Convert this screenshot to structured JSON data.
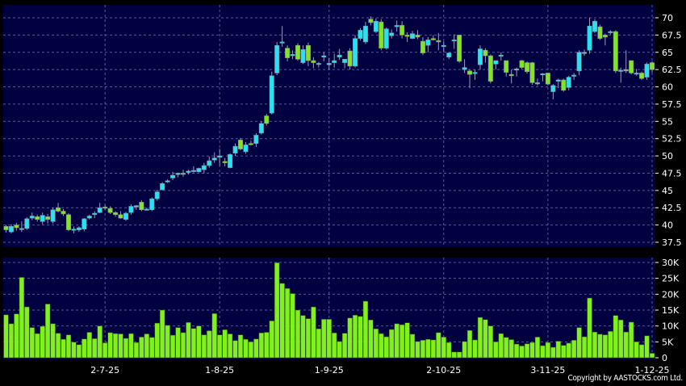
{
  "copyright": "Copyright by AASTOCKS.com Ltd.",
  "colors": {
    "background": "#000000",
    "panel": "#000040",
    "up": "#22e4f2",
    "down": "#80e620",
    "volume": "#80f020",
    "grid": "#5a5a9a",
    "wick": "#9aa0b0"
  },
  "chart_data": [
    {
      "type": "candlestick",
      "price_axis": {
        "ticks": [
          "37.5",
          "40",
          "42.5",
          "45",
          "47.5",
          "50",
          "52.5",
          "55",
          "57.5",
          "60",
          "62.5",
          "65",
          "67.5",
          "70"
        ],
        "ylim": [
          37.5,
          70
        ],
        "position": "right"
      },
      "x_tick_labels": [
        {
          "label": "2-7-25",
          "index": 19
        },
        {
          "label": "1-8-25",
          "index": 41
        },
        {
          "label": "1-9-25",
          "index": 62
        },
        {
          "label": "2-10-25",
          "index": 84
        },
        {
          "label": "3-11-25",
          "index": 104
        },
        {
          "label": "1-12-25",
          "index": 124
        }
      ],
      "grid": true,
      "ohlc": [
        [
          39.8,
          40.0,
          38.9,
          39.3
        ],
        [
          39.0,
          40.1,
          38.8,
          39.8
        ],
        [
          40.0,
          40.3,
          39.2,
          39.6
        ],
        [
          39.5,
          40.5,
          39.0,
          39.5
        ],
        [
          39.5,
          41.1,
          39.3,
          40.9
        ],
        [
          41.0,
          41.8,
          40.7,
          41.3
        ],
        [
          41.2,
          41.5,
          40.5,
          40.8
        ],
        [
          40.5,
          41.8,
          40.1,
          41.4
        ],
        [
          41.2,
          41.6,
          40.2,
          40.8
        ],
        [
          40.5,
          42.5,
          40.2,
          42.2
        ],
        [
          42.5,
          43.2,
          41.8,
          42.0
        ],
        [
          42.0,
          42.3,
          41.3,
          41.6
        ],
        [
          41.5,
          41.7,
          39.1,
          39.3
        ],
        [
          39.3,
          39.8,
          38.8,
          39.4
        ],
        [
          39.3,
          39.8,
          39.0,
          39.6
        ],
        [
          39.4,
          41.0,
          39.1,
          40.9
        ],
        [
          41.0,
          41.5,
          40.8,
          41.3
        ],
        [
          41.5,
          42.0,
          41.0,
          41.7
        ],
        [
          41.8,
          43.2,
          41.7,
          42.5
        ],
        [
          42.6,
          42.9,
          42.2,
          42.5
        ],
        [
          42.4,
          42.7,
          41.6,
          41.8
        ],
        [
          41.8,
          42.0,
          41.2,
          41.5
        ],
        [
          41.5,
          42.0,
          40.9,
          41.0
        ],
        [
          40.8,
          41.9,
          40.6,
          41.7
        ],
        [
          41.8,
          43.0,
          41.5,
          42.7
        ],
        [
          42.6,
          42.9,
          42.2,
          42.8
        ],
        [
          43.3,
          43.6,
          42.0,
          42.2
        ],
        [
          42.3,
          42.5,
          42.2,
          42.3
        ],
        [
          42.2,
          44.0,
          42.0,
          43.8
        ],
        [
          43.8,
          45.1,
          43.5,
          44.8
        ],
        [
          45.1,
          46.2,
          45.0,
          46.0
        ],
        [
          46.3,
          46.6,
          46.1,
          46.4
        ],
        [
          46.8,
          47.7,
          46.5,
          47.2
        ],
        [
          47.3,
          47.6,
          46.9,
          47.5
        ],
        [
          47.5,
          48.0,
          47.0,
          47.4
        ],
        [
          47.6,
          48.0,
          47.3,
          47.8
        ],
        [
          47.8,
          48.5,
          47.6,
          47.9
        ],
        [
          47.7,
          48.3,
          47.6,
          48.2
        ],
        [
          48.0,
          49.0,
          47.5,
          48.6
        ],
        [
          48.6,
          49.9,
          48.3,
          49.3
        ],
        [
          49.4,
          50.5,
          49.0,
          49.7
        ],
        [
          49.8,
          51.0,
          48.6,
          50.0
        ],
        [
          49.2,
          49.7,
          48.5,
          49.0
        ],
        [
          48.3,
          50.4,
          48.2,
          50.2
        ],
        [
          50.4,
          51.8,
          50.0,
          51.4
        ],
        [
          52.3,
          52.6,
          50.8,
          51.0
        ],
        [
          50.6,
          52.0,
          50.3,
          51.6
        ],
        [
          51.8,
          52.2,
          51.5,
          51.7
        ],
        [
          51.8,
          53.3,
          51.3,
          53.0
        ],
        [
          53.3,
          55.0,
          53.1,
          54.7
        ],
        [
          55.8,
          56.1,
          54.4,
          54.7
        ],
        [
          56.2,
          62.2,
          56.0,
          61.6
        ],
        [
          62.0,
          66.5,
          61.7,
          66.0
        ],
        [
          66.5,
          68.8,
          65.8,
          66.5
        ],
        [
          65.6,
          66.0,
          63.7,
          64.2
        ],
        [
          64.5,
          65.3,
          64.0,
          64.7
        ],
        [
          66.0,
          66.3,
          63.8,
          64.0
        ],
        [
          63.5,
          66.0,
          63.3,
          65.4
        ],
        [
          66.0,
          66.4,
          63.0,
          63.8
        ],
        [
          63.8,
          64.3,
          62.7,
          63.5
        ],
        [
          63.4,
          63.6,
          62.8,
          63.4
        ],
        [
          64.3,
          65.0,
          63.7,
          64.5
        ],
        [
          63.2,
          64.2,
          62.5,
          63.4
        ],
        [
          63.5,
          64.8,
          62.8,
          63.8
        ],
        [
          64.3,
          65.5,
          63.9,
          64.6
        ],
        [
          63.5,
          64.0,
          62.7,
          64.0
        ],
        [
          65.2,
          65.6,
          62.5,
          63.0
        ],
        [
          63.0,
          67.5,
          62.8,
          67.0
        ],
        [
          67.0,
          68.5,
          66.7,
          68.2
        ],
        [
          66.5,
          69.4,
          66.2,
          68.8
        ],
        [
          69.8,
          70.2,
          68.9,
          69.3
        ],
        [
          68.0,
          69.9,
          67.8,
          69.5
        ],
        [
          69.4,
          69.8,
          65.3,
          65.6
        ],
        [
          65.6,
          68.6,
          65.4,
          68.4
        ],
        [
          67.4,
          68.3,
          67.0,
          67.8
        ],
        [
          68.7,
          69.6,
          68.0,
          68.9
        ],
        [
          68.9,
          69.5,
          67.0,
          67.5
        ],
        [
          67.5,
          67.9,
          66.5,
          67.3
        ],
        [
          67.0,
          68.1,
          66.9,
          67.7
        ],
        [
          67.5,
          68.2,
          66.9,
          67.2
        ],
        [
          66.6,
          67.2,
          64.6,
          64.9
        ],
        [
          66.0,
          67.2,
          65.0,
          66.8
        ],
        [
          67.0,
          67.5,
          66.7,
          66.8
        ],
        [
          66.7,
          67.8,
          65.3,
          66.5
        ],
        [
          66.0,
          66.6,
          65.0,
          66.0
        ],
        [
          64.3,
          65.0,
          64.0,
          64.9
        ],
        [
          66.8,
          67.6,
          65.5,
          66.8
        ],
        [
          67.5,
          67.5,
          63.5,
          63.7
        ],
        [
          62.5,
          64.0,
          62.0,
          62.8
        ],
        [
          62.3,
          62.5,
          59.8,
          61.8
        ],
        [
          62.1,
          62.5,
          61.0,
          62.1
        ],
        [
          63.2,
          66.0,
          62.5,
          65.5
        ],
        [
          65.3,
          65.6,
          63.5,
          64.5
        ],
        [
          64.5,
          64.7,
          60.5,
          60.8
        ],
        [
          63.3,
          63.8,
          62.5,
          63.8
        ],
        [
          64.5,
          65.0,
          63.8,
          64.6
        ],
        [
          63.8,
          63.8,
          61.5,
          62.1
        ],
        [
          61.8,
          62.5,
          60.5,
          61.6
        ],
        [
          62.5,
          62.8,
          61.5,
          62.6
        ],
        [
          63.8,
          63.9,
          62.6,
          62.8
        ],
        [
          63.5,
          63.7,
          61.9,
          62.2
        ],
        [
          63.5,
          63.6,
          60.3,
          60.6
        ],
        [
          60.6,
          61.2,
          60.2,
          60.6
        ],
        [
          61.8,
          62.0,
          60.8,
          61.9
        ],
        [
          62.0,
          62.0,
          60.2,
          60.4
        ],
        [
          59.3,
          60.4,
          58.2,
          60.2
        ],
        [
          60.8,
          61.2,
          59.8,
          61.0
        ],
        [
          61.0,
          61.2,
          59.3,
          59.5
        ],
        [
          59.9,
          61.6,
          59.5,
          61.4
        ],
        [
          61.6,
          62.0,
          61.0,
          61.7
        ],
        [
          62.3,
          65.3,
          61.7,
          65.0
        ],
        [
          65.0,
          65.4,
          64.5,
          64.9
        ],
        [
          65.3,
          70.0,
          64.8,
          68.8
        ],
        [
          68.0,
          69.8,
          67.8,
          69.5
        ],
        [
          68.7,
          69.0,
          66.8,
          67.0
        ],
        [
          67.5,
          67.7,
          66.0,
          67.2
        ],
        [
          67.9,
          68.2,
          67.6,
          68.0
        ],
        [
          68.0,
          68.2,
          62.0,
          62.3
        ],
        [
          62.3,
          62.8,
          60.6,
          62.4
        ],
        [
          62.5,
          65.3,
          62.0,
          62.3
        ],
        [
          63.8,
          63.8,
          61.8,
          62.0
        ],
        [
          62.0,
          62.6,
          61.6,
          62.0
        ],
        [
          62.0,
          62.2,
          61.0,
          61.2
        ],
        [
          61.4,
          63.5,
          61.0,
          63.3
        ],
        [
          63.5,
          63.7,
          62.1,
          62.5
        ]
      ]
    },
    {
      "type": "bar",
      "volume_axis": {
        "ticks": [
          "0",
          "5K",
          "10K",
          "15K",
          "20K",
          "25K",
          "30K"
        ],
        "ylim": [
          0,
          30000
        ],
        "position": "right"
      },
      "grid": true,
      "values_k": [
        13.5,
        10.7,
        13.8,
        25.3,
        16,
        9.5,
        7.6,
        9.9,
        16.9,
        10.7,
        7.7,
        5.8,
        7.2,
        4.9,
        4.1,
        5.9,
        8,
        6,
        10,
        4.7,
        7.9,
        7.6,
        7.5,
        6.1,
        7.6,
        4.8,
        6.5,
        7.5,
        6.4,
        10.9,
        15,
        10.2,
        7.1,
        9.5,
        7.9,
        11.1,
        9.2,
        10,
        7.2,
        8.5,
        13.9,
        7.2,
        8.8,
        7.5,
        5.4,
        7.2,
        5.8,
        5,
        5.9,
        7.8,
        8,
        11.6,
        29.9,
        23.4,
        21.8,
        20.2,
        15,
        13.3,
        12.3,
        16,
        9.1,
        12.1,
        12.1,
        7.8,
        5.1,
        7.7,
        12.5,
        13.4,
        13,
        17.8,
        11.9,
        9.1,
        7.6,
        6.6,
        8.9,
        10.7,
        10.4,
        11,
        7.4,
        5.1,
        5.5,
        5.8,
        5.6,
        7.9,
        6.5,
        4.8,
        1.8,
        1.8,
        5.1,
        8.6,
        5.6,
        12.7,
        12,
        10,
        5,
        7.6,
        6.4,
        5.7,
        4.3,
        3.7,
        4.4,
        4.8,
        6.5,
        3.8,
        4.8,
        3.3,
        5.2,
        3.9,
        4.6,
        5.5,
        9.5,
        6.6,
        18.8,
        8.1,
        7.4,
        7.2,
        8.3,
        13.3,
        11.9,
        8.1,
        11.2,
        5,
        4.1,
        6.9,
        1.4
      ]
    }
  ]
}
